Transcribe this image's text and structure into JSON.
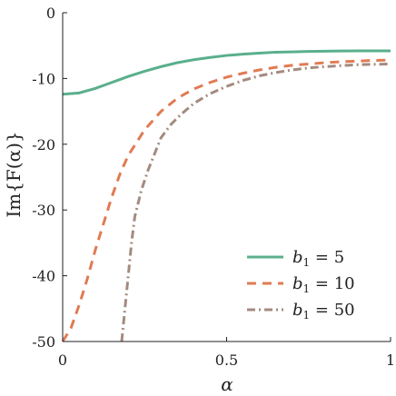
{
  "chart_data": {
    "type": "line",
    "title": "",
    "xlabel": "α",
    "ylabel": "Im{F(α)}",
    "xlim": [
      0,
      1
    ],
    "ylim": [
      -50,
      0
    ],
    "x_ticks": [
      0,
      0.5,
      1
    ],
    "x_tick_labels": [
      "0",
      "0.5",
      "1"
    ],
    "y_ticks": [
      0,
      -10,
      -20,
      -30,
      -40,
      -50
    ],
    "y_tick_labels": [
      "0",
      "-10",
      "-20",
      "-30",
      "-40",
      "-50"
    ],
    "grid": false,
    "legend_position": "bottom-right",
    "series": [
      {
        "name": "b1 = 5",
        "legend_base": "b",
        "legend_sub": "1",
        "legend_rest": " = 5",
        "color": "#5aaf8c",
        "style": "solid",
        "points": [
          [
            0.0,
            -12.4
          ],
          [
            0.05,
            -12.2
          ],
          [
            0.1,
            -11.5
          ],
          [
            0.15,
            -10.6
          ],
          [
            0.2,
            -9.7
          ],
          [
            0.25,
            -8.9
          ],
          [
            0.3,
            -8.2
          ],
          [
            0.35,
            -7.6
          ],
          [
            0.4,
            -7.15
          ],
          [
            0.45,
            -6.8
          ],
          [
            0.5,
            -6.5
          ],
          [
            0.55,
            -6.3
          ],
          [
            0.6,
            -6.15
          ],
          [
            0.65,
            -6.0
          ],
          [
            0.7,
            -5.95
          ],
          [
            0.75,
            -5.88
          ],
          [
            0.8,
            -5.85
          ],
          [
            0.85,
            -5.82
          ],
          [
            0.9,
            -5.8
          ],
          [
            0.95,
            -5.8
          ],
          [
            1.0,
            -5.8
          ]
        ]
      },
      {
        "name": "b1 = 10",
        "legend_base": "b",
        "legend_sub": "1",
        "legend_rest": " = 10",
        "color": "#e07b53",
        "style": "dashed",
        "points": [
          [
            0.0,
            -50.0
          ],
          [
            0.025,
            -48.0
          ],
          [
            0.05,
            -44.5
          ],
          [
            0.075,
            -40.5
          ],
          [
            0.1,
            -36.0
          ],
          [
            0.125,
            -32.0
          ],
          [
            0.15,
            -28.0
          ],
          [
            0.175,
            -24.5
          ],
          [
            0.2,
            -21.7
          ],
          [
            0.25,
            -17.8
          ],
          [
            0.3,
            -15.0
          ],
          [
            0.35,
            -13.0
          ],
          [
            0.4,
            -11.6
          ],
          [
            0.45,
            -10.6
          ],
          [
            0.5,
            -9.8
          ],
          [
            0.55,
            -9.2
          ],
          [
            0.6,
            -8.7
          ],
          [
            0.65,
            -8.3
          ],
          [
            0.7,
            -8.0
          ],
          [
            0.75,
            -7.8
          ],
          [
            0.8,
            -7.6
          ],
          [
            0.85,
            -7.45
          ],
          [
            0.9,
            -7.35
          ],
          [
            0.95,
            -7.25
          ],
          [
            1.0,
            -7.2
          ]
        ]
      },
      {
        "name": "b1 = 50",
        "legend_base": "b",
        "legend_sub": "1",
        "legend_rest": " = 50",
        "color": "#a38b7f",
        "style": "dashdot",
        "points": [
          [
            0.18,
            -50.0
          ],
          [
            0.19,
            -45.0
          ],
          [
            0.2,
            -40.0
          ],
          [
            0.21,
            -35.0
          ],
          [
            0.22,
            -31.0
          ],
          [
            0.24,
            -27.0
          ],
          [
            0.26,
            -24.0
          ],
          [
            0.28,
            -21.5
          ],
          [
            0.3,
            -19.0
          ],
          [
            0.33,
            -17.0
          ],
          [
            0.36,
            -15.5
          ],
          [
            0.4,
            -13.8
          ],
          [
            0.45,
            -12.3
          ],
          [
            0.5,
            -11.2
          ],
          [
            0.55,
            -10.3
          ],
          [
            0.6,
            -9.6
          ],
          [
            0.65,
            -9.1
          ],
          [
            0.7,
            -8.7
          ],
          [
            0.75,
            -8.4
          ],
          [
            0.8,
            -8.2
          ],
          [
            0.85,
            -8.05
          ],
          [
            0.9,
            -7.9
          ],
          [
            0.95,
            -7.85
          ],
          [
            1.0,
            -7.8
          ]
        ]
      }
    ]
  }
}
